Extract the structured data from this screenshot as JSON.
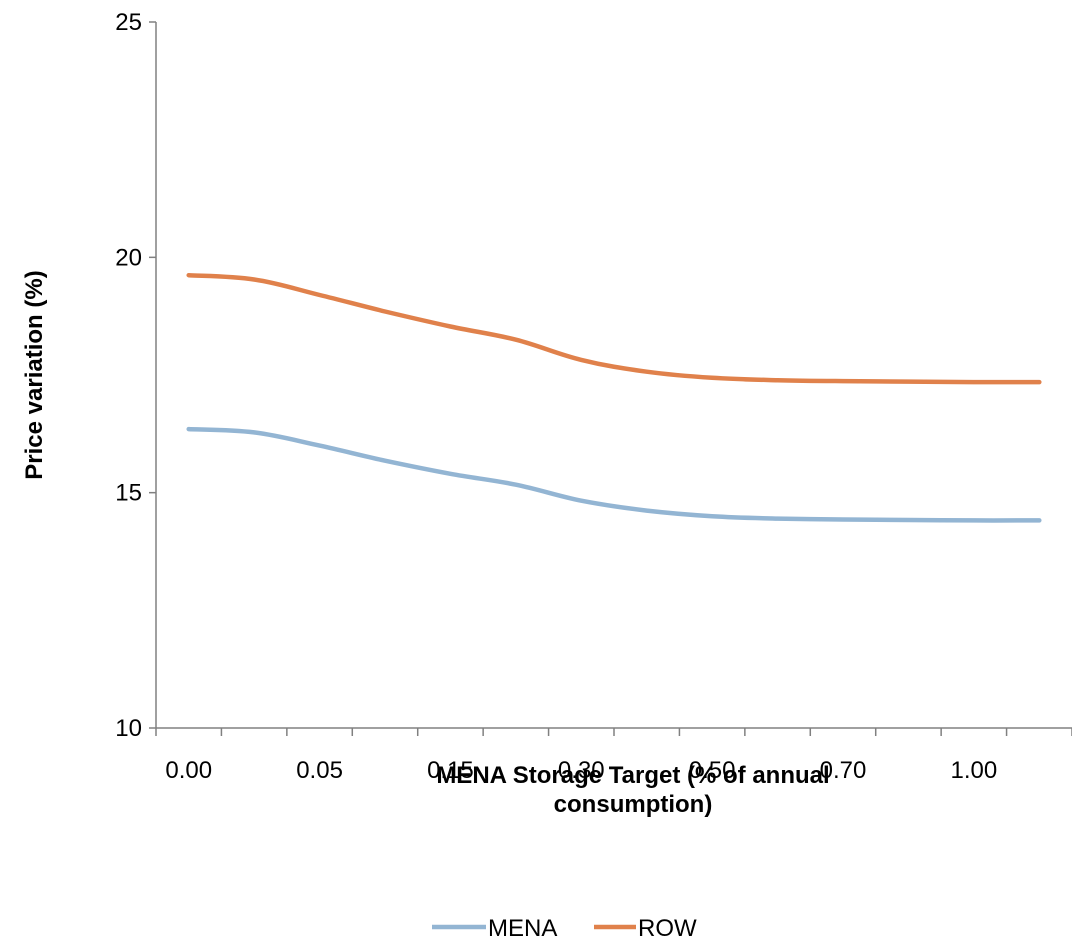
{
  "chart_data": {
    "type": "line",
    "xlabel": "MENA Storage Target (% of annual consumption)",
    "xlabel_lines": [
      "MENA Storage Target (% of annual",
      "consumption)"
    ],
    "ylabel": "Price variation (%)",
    "ylim": [
      10,
      25
    ],
    "yticks": [
      10,
      15,
      20,
      25
    ],
    "categories": [
      "0.00",
      "",
      "0.05",
      "",
      "0.15",
      "",
      "0.30",
      "",
      "0.50",
      "",
      "0.70",
      "",
      "1.00",
      ""
    ],
    "tick_labels": [
      "0.00",
      "0.05",
      "0.15",
      "0.30",
      "0.50",
      "0.70",
      "1.00"
    ],
    "series": [
      {
        "name": "MENA",
        "color": "#93b5d3",
        "values": [
          16.35,
          16.28,
          16.0,
          15.68,
          15.4,
          15.17,
          14.83,
          14.62,
          14.5,
          14.45,
          14.43,
          14.42,
          14.41,
          14.41
        ]
      },
      {
        "name": "ROW",
        "color": "#e0814b",
        "values": [
          19.62,
          19.53,
          19.2,
          18.85,
          18.53,
          18.25,
          17.82,
          17.57,
          17.44,
          17.39,
          17.37,
          17.36,
          17.35,
          17.35
        ]
      }
    ],
    "grid": false,
    "legend": "bottom"
  }
}
